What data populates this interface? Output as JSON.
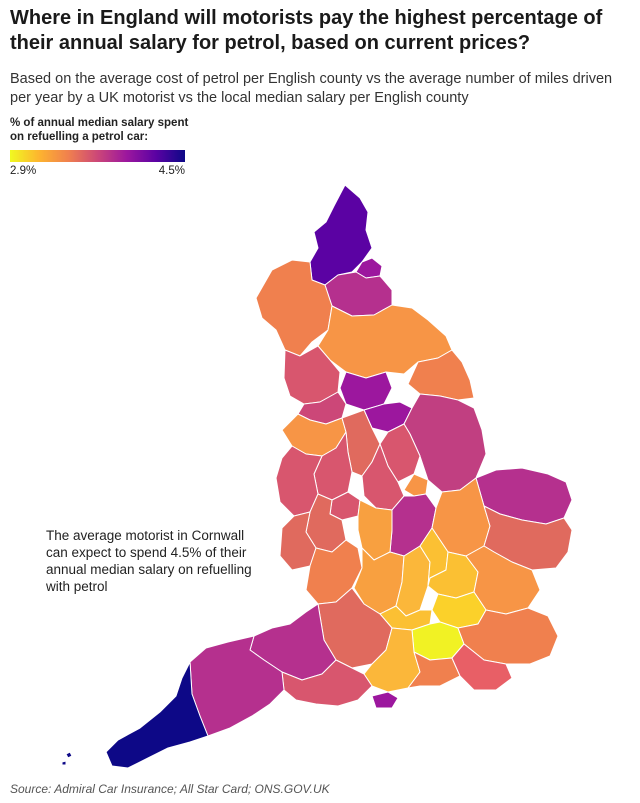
{
  "title": "Where in England will motorists pay the highest percentage of their annual salary for petrol, based on current prices?",
  "subtitle": "Based on the average cost of petrol per English county vs the average number of miles driven per year by a UK motorist vs the local median salary per English county",
  "legend": {
    "title": "% of annual median salary spent on refuelling a petrol car:",
    "min_label": "2.9%",
    "max_label": "4.5%",
    "scale_colors": [
      "#f0f921",
      "#fdb42f",
      "#f0804e",
      "#cc4778",
      "#9c179e",
      "#5b02a3",
      "#0d0887"
    ]
  },
  "annotation": "The average motorist in Cornwall can expect to spend 4.5% of their annual median salary on refuelling with petrol",
  "source": "Source: Admiral Car Insurance; All Star Card; ONS.GOV.UK",
  "highlight": {
    "region": "Cornwall",
    "value": 4.5
  }
}
